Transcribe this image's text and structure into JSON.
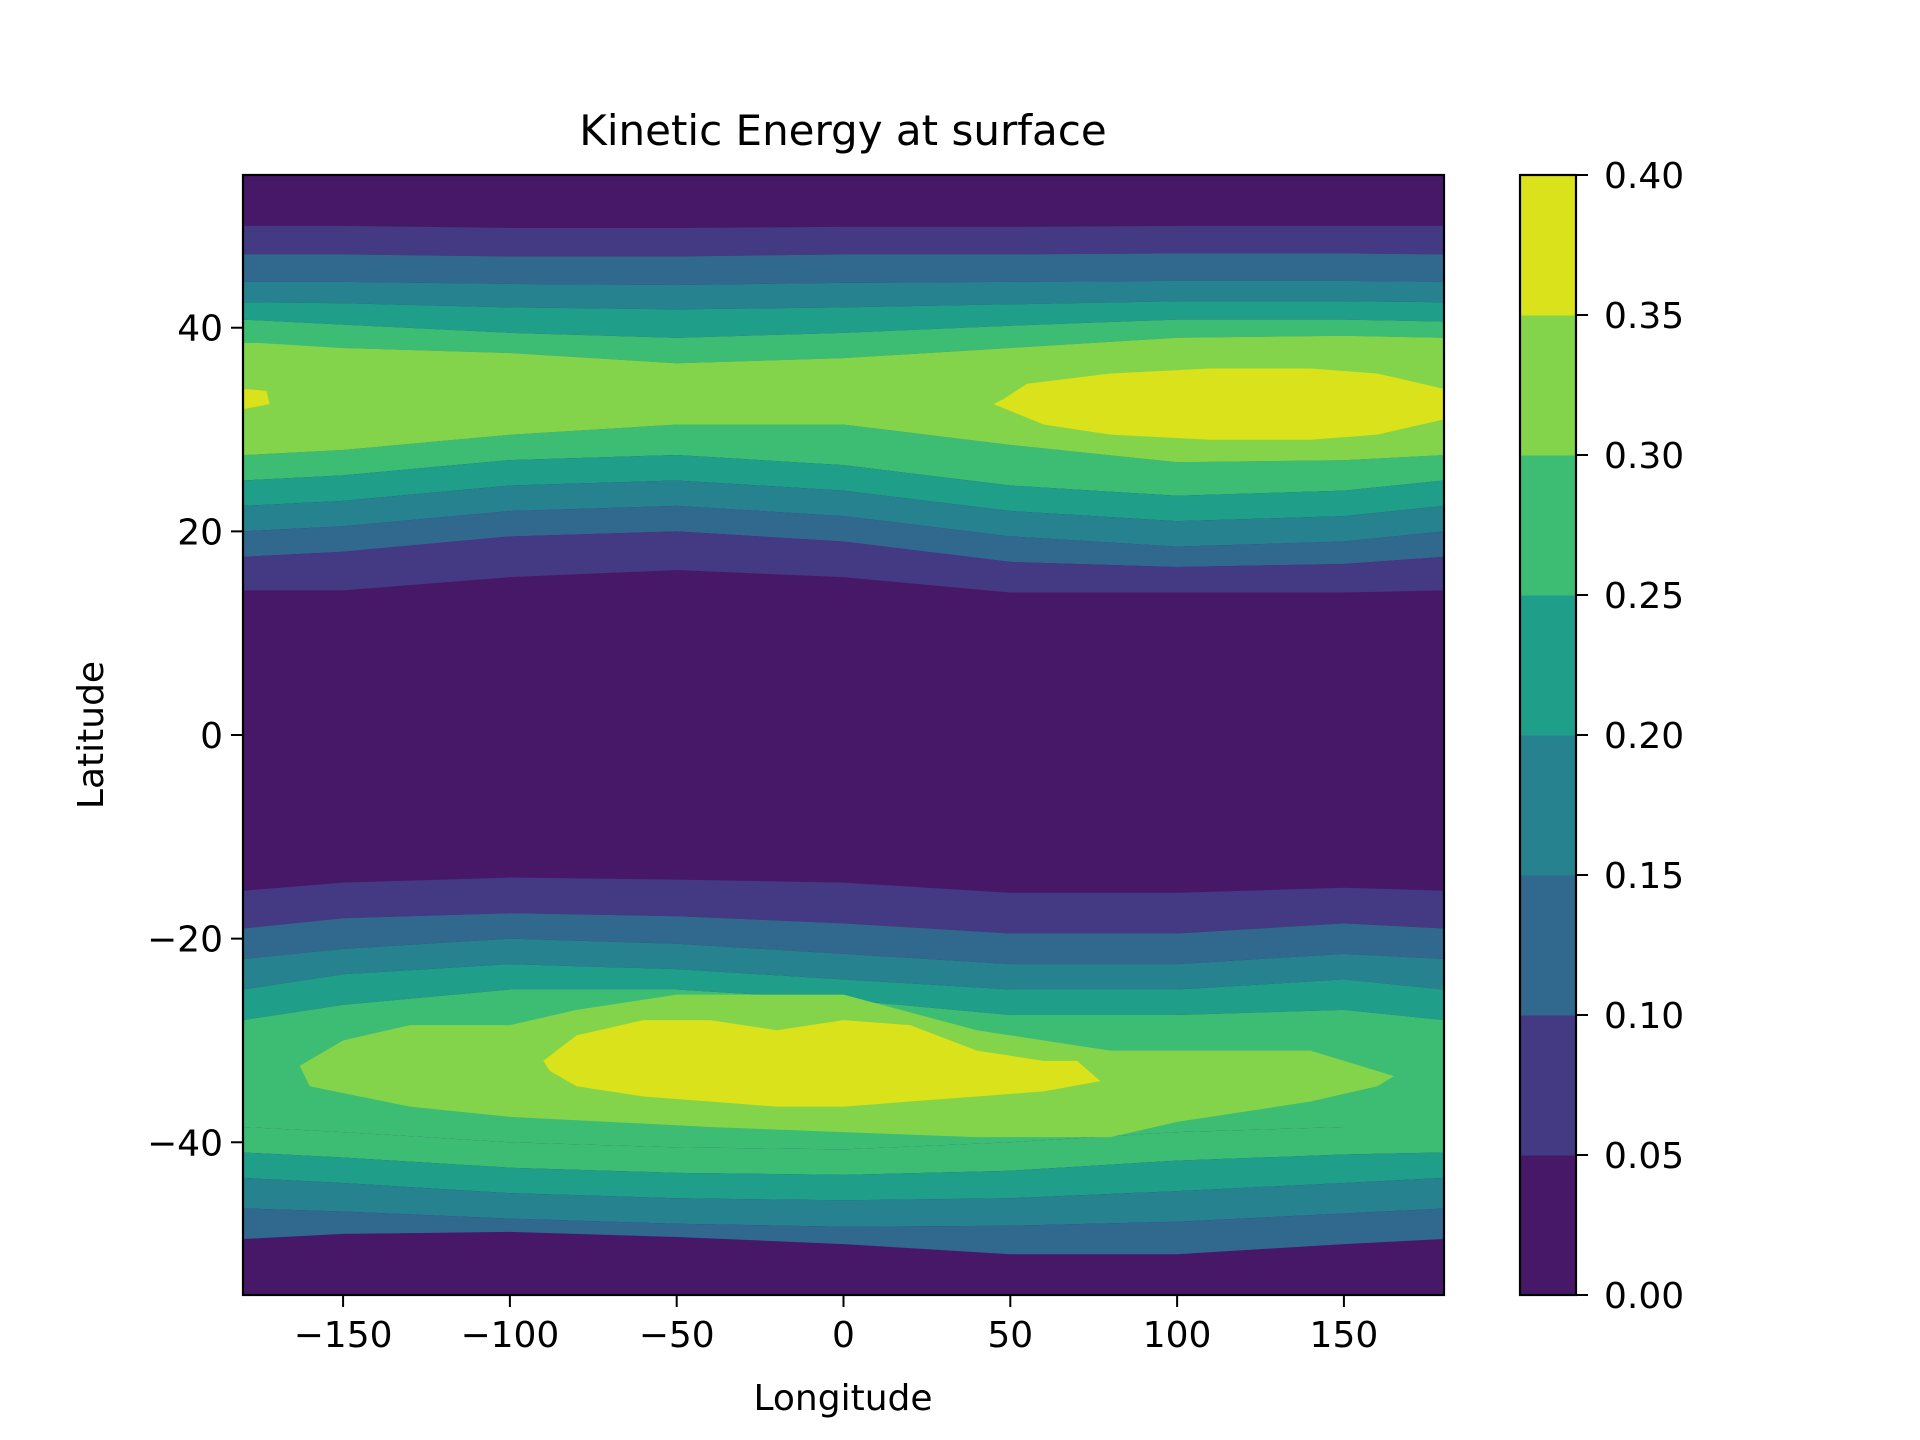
{
  "chart_data": {
    "type": "contourf",
    "title": "Kinetic Energy at surface",
    "xlabel": "Longitude",
    "ylabel": "Latitude",
    "xlim": [
      -180,
      180
    ],
    "ylim": [
      -55,
      55
    ],
    "x_ticks": [
      -150,
      -100,
      -50,
      0,
      50,
      100,
      150
    ],
    "x_tick_labels": [
      "−150",
      "−100",
      "−50",
      "0",
      "50",
      "100",
      "150"
    ],
    "y_ticks": [
      -40,
      -20,
      0,
      20,
      40
    ],
    "y_tick_labels": [
      "−40",
      "−20",
      "0",
      "20",
      "40"
    ],
    "colorbar": {
      "levels": [
        0.0,
        0.05,
        0.1,
        0.15,
        0.2,
        0.25,
        0.3,
        0.35,
        0.4
      ],
      "tick_labels": [
        "0.00",
        "0.05",
        "0.10",
        "0.15",
        "0.20",
        "0.25",
        "0.30",
        "0.35",
        "0.40"
      ],
      "colors": [
        "#471868",
        "#443983",
        "#31688e",
        "#26828e",
        "#1f9e89",
        "#3dbc74",
        "#84d44b",
        "#d9e21a"
      ]
    },
    "background_color": "#471868",
    "band_boundaries_north": {
      "x": [
        -180,
        -150,
        -100,
        -50,
        0,
        50,
        100,
        150,
        180
      ],
      "lines": [
        {
          "level": 0.05,
          "y": [
            50.0,
            50.0,
            49.8,
            49.8,
            49.9,
            49.9,
            50.0,
            50.0,
            50.0
          ]
        },
        {
          "level": 0.1,
          "y": [
            47.2,
            47.2,
            47.0,
            47.0,
            47.2,
            47.2,
            47.3,
            47.3,
            47.2
          ]
        },
        {
          "level": 0.15,
          "y": [
            44.5,
            44.5,
            44.3,
            44.2,
            44.4,
            44.5,
            44.6,
            44.6,
            44.5
          ]
        },
        {
          "level": 0.2,
          "y": [
            42.5,
            42.4,
            42.0,
            41.8,
            42.0,
            42.3,
            42.6,
            42.6,
            42.5
          ]
        },
        {
          "level": 0.25,
          "y": [
            40.8,
            40.3,
            39.5,
            39.0,
            39.5,
            40.2,
            40.8,
            40.8,
            40.6
          ]
        },
        {
          "level": 0.3,
          "y": [
            38.5,
            38.0,
            37.5,
            36.5,
            37.0,
            38.0,
            39.0,
            39.2,
            39.0
          ]
        },
        {
          "level": 0.3,
          "y": [
            27.5,
            28.0,
            29.5,
            30.5,
            30.5,
            28.5,
            26.8,
            27.0,
            27.5
          ]
        },
        {
          "level": 0.25,
          "y": [
            25.0,
            25.5,
            27.0,
            27.5,
            26.5,
            24.5,
            23.5,
            24.0,
            25.0
          ]
        },
        {
          "level": 0.2,
          "y": [
            22.5,
            23.0,
            24.5,
            25.0,
            24.0,
            22.0,
            21.0,
            21.5,
            22.5
          ]
        },
        {
          "level": 0.15,
          "y": [
            20.0,
            20.5,
            22.0,
            22.5,
            21.5,
            19.5,
            18.5,
            19.0,
            20.0
          ]
        },
        {
          "level": 0.1,
          "y": [
            17.5,
            18.0,
            19.5,
            20.0,
            19.0,
            17.0,
            16.5,
            16.8,
            17.5
          ]
        },
        {
          "level": 0.05,
          "y": [
            14.2,
            14.2,
            15.5,
            16.2,
            15.5,
            14.0,
            14.0,
            14.0,
            14.2
          ]
        }
      ]
    },
    "band_boundaries_south": {
      "x": [
        -180,
        -150,
        -100,
        -50,
        0,
        50,
        100,
        150,
        180
      ],
      "lines": [
        {
          "level": 0.05,
          "y": [
            -15.3,
            -14.5,
            -14.0,
            -14.2,
            -14.5,
            -15.5,
            -15.5,
            -15.0,
            -15.3
          ]
        },
        {
          "level": 0.1,
          "y": [
            -19.0,
            -18.0,
            -17.5,
            -17.8,
            -18.5,
            -19.5,
            -19.5,
            -18.5,
            -19.0
          ]
        },
        {
          "level": 0.15,
          "y": [
            -22.0,
            -21.0,
            -20.0,
            -20.5,
            -21.5,
            -22.5,
            -22.5,
            -21.5,
            -22.0
          ]
        },
        {
          "level": 0.2,
          "y": [
            -25.0,
            -23.5,
            -22.5,
            -23.0,
            -24.0,
            -25.0,
            -25.0,
            -24.0,
            -25.0
          ]
        },
        {
          "level": 0.25,
          "y": [
            -28.0,
            -26.5,
            -25.0,
            -25.0,
            -26.0,
            -27.5,
            -27.5,
            -27.0,
            -28.0
          ]
        },
        {
          "level": 0.3,
          "y": [
            -38.5,
            -39.0,
            -40.0,
            -40.5,
            -40.7,
            -40.0,
            -39.0,
            -38.5,
            -38.5
          ]
        },
        {
          "level": 0.25,
          "y": [
            -41.0,
            -41.5,
            -42.5,
            -43.0,
            -43.2,
            -42.8,
            -41.8,
            -41.2,
            -41.0
          ]
        },
        {
          "level": 0.2,
          "y": [
            -43.5,
            -44.0,
            -45.0,
            -45.5,
            -45.7,
            -45.5,
            -44.8,
            -44.0,
            -43.5
          ]
        },
        {
          "level": 0.15,
          "y": [
            -46.5,
            -46.8,
            -47.5,
            -48.0,
            -48.3,
            -48.2,
            -47.8,
            -47.0,
            -46.5
          ]
        },
        {
          "level": 0.1,
          "y": [
            -49.5,
            -49.0,
            -48.8,
            -49.3,
            -50.0,
            -51.0,
            -51.0,
            -50.0,
            -49.5
          ]
        }
      ]
    },
    "high_regions": [
      {
        "level": 0.3,
        "x": [
          -180,
          -175,
          -150,
          -100,
          -50,
          0,
          50,
          100,
          150,
          180,
          180,
          150,
          100,
          50,
          0,
          -50,
          -100,
          -150,
          -180
        ],
        "y": [
          38.5,
          38.5,
          38.0,
          37.5,
          36.5,
          37.0,
          38.0,
          39.0,
          39.2,
          39.0,
          27.5,
          27.0,
          26.8,
          28.5,
          30.5,
          30.5,
          29.5,
          28.0,
          27.5
        ]
      },
      {
        "level": 0.35,
        "x": [
          -180,
          -173,
          -172,
          -180
        ],
        "y": [
          34.0,
          33.8,
          32.5,
          32.0
        ]
      },
      {
        "level": 0.35,
        "x": [
          48,
          55,
          80,
          110,
          140,
          160,
          180,
          180,
          160,
          140,
          110,
          80,
          60,
          45
        ],
        "y": [
          33.0,
          34.5,
          35.5,
          36.0,
          36.0,
          35.5,
          34.0,
          31.0,
          29.5,
          29.0,
          29.0,
          29.5,
          30.5,
          32.5
        ]
      },
      {
        "level": 0.3,
        "x": [
          -163,
          -150,
          -130,
          -100,
          -80,
          -50,
          -20,
          0,
          40,
          80,
          140,
          165,
          160,
          140,
          100,
          80,
          60,
          40,
          0,
          -40,
          -100,
          -130,
          -160
        ],
        "y": [
          -32.5,
          -30.0,
          -28.5,
          -28.5,
          -27.0,
          -25.5,
          -25.5,
          -25.5,
          -29.0,
          -31.0,
          -31.0,
          -33.5,
          -34.5,
          -36.0,
          -38.0,
          -39.5,
          -39.5,
          -39.5,
          -39.0,
          -38.5,
          -37.5,
          -36.5,
          -34.5
        ]
      },
      {
        "level": 0.35,
        "x": [
          -90,
          -80,
          -60,
          -40,
          -20,
          0,
          20,
          40,
          60,
          70,
          77,
          60,
          40,
          20,
          0,
          -20,
          -40,
          -60,
          -80,
          -88
        ],
        "y": [
          -32.0,
          -29.5,
          -28.0,
          -28.0,
          -29.0,
          -28.0,
          -28.5,
          -31.0,
          -32.0,
          -32.0,
          -34.0,
          -35.0,
          -35.5,
          -36.0,
          -36.5,
          -36.5,
          -36.0,
          -35.5,
          -34.5,
          -33.0
        ]
      }
    ]
  }
}
